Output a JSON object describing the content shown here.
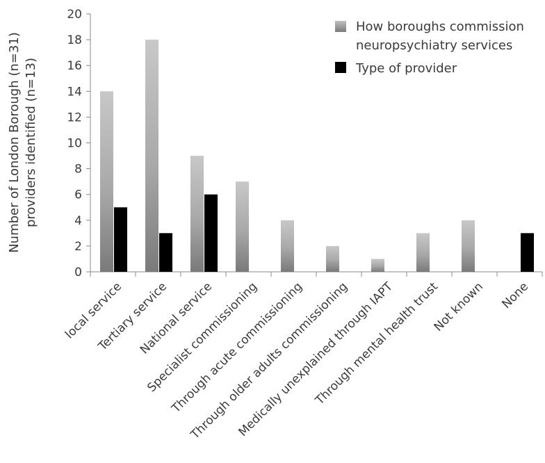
{
  "chart_data": {
    "type": "bar",
    "ylabel_line1": "Number of London Borough (n=31)",
    "ylabel_line2": "providers identified (n=13)",
    "ylim": [
      0,
      20
    ],
    "yticks": [
      0,
      2,
      4,
      6,
      8,
      10,
      12,
      14,
      16,
      18,
      20
    ],
    "categories": [
      "local service",
      "Tertiary service",
      "National service",
      "Specialist commissioning",
      "Through acute commissioning",
      "Through older adults commissioning",
      "Medically unexplained through IAPT",
      "Through mental health trust",
      "Not known",
      "None"
    ],
    "series": [
      {
        "name": "How boroughs commission neuropsychiatry services",
        "legend_lines": [
          "How boroughs commission",
          "neuropsychiatry services"
        ],
        "values": [
          14,
          18,
          9,
          7,
          4,
          2,
          1,
          3,
          4,
          0
        ],
        "color": "#9a9a9a"
      },
      {
        "name": "Type of provider",
        "legend_lines": [
          "Type of provider"
        ],
        "values": [
          5,
          3,
          6,
          0,
          0,
          0,
          0,
          0,
          0,
          3
        ],
        "color": "#000000"
      }
    ],
    "legend_position": "top-right",
    "grid": false
  }
}
